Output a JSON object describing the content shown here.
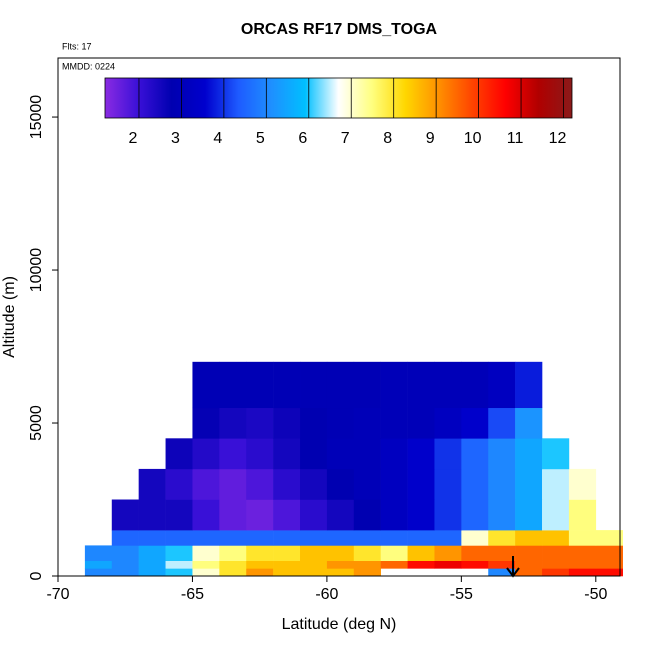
{
  "chart_data": {
    "type": "heatmap",
    "title": "ORCAS RF17 DMS_TOGA",
    "annotations": [
      "Flts: 17",
      "MMDD: 0224"
    ],
    "x_label": "Latitude (deg N)",
    "y_label": "Altitude (m)",
    "xlim": [
      -70,
      -49.1
    ],
    "ylim": [
      0,
      16930
    ],
    "xticks": [
      -70,
      -65,
      -60,
      -55,
      -50
    ],
    "yticks": [
      0,
      5000,
      10000,
      15000
    ],
    "x_edges": [
      -69,
      -68,
      -67,
      -66,
      -65,
      -64,
      -63,
      -62,
      -61,
      -60,
      -59,
      -58,
      -57,
      -56,
      -55,
      -54,
      -53,
      -52,
      -51,
      -50,
      -49
    ],
    "y_edges": [
      0,
      250,
      500,
      1000,
      1500,
      2500,
      3500,
      4500,
      5500,
      7000
    ],
    "z": [
      [
        5,
        5,
        5.5,
        6,
        7,
        8,
        9,
        8.5,
        8.5,
        8.5,
        9,
        null,
        null,
        null,
        null,
        5,
        9.5,
        10,
        10.5,
        10.5
      ],
      [
        5.5,
        5,
        5.5,
        6.5,
        7.5,
        8,
        8.5,
        8.5,
        8.5,
        9,
        9,
        9.5,
        10.5,
        10.8,
        10.5,
        10,
        9.5,
        9.5,
        9.5,
        9.5
      ],
      [
        5,
        5,
        5.5,
        6,
        7,
        7.5,
        8,
        8,
        8.5,
        8.5,
        8,
        7.5,
        8.5,
        9,
        9.5,
        9.5,
        9.5,
        9.5,
        9.5,
        9.5
      ],
      [
        null,
        4.5,
        4.5,
        4.5,
        4.5,
        4.5,
        4.5,
        4.5,
        4.5,
        4.5,
        4.5,
        4.5,
        4.5,
        4.5,
        7,
        8,
        8.5,
        8.5,
        7.5,
        7.5
      ],
      [
        null,
        2.5,
        2.5,
        2.5,
        2.0,
        1.6,
        1.5,
        1.8,
        2.2,
        2.5,
        2.8,
        3.2,
        3.5,
        4,
        4.5,
        5,
        5.5,
        6.5,
        7.5,
        null
      ],
      [
        null,
        null,
        2.5,
        2.2,
        1.8,
        1.6,
        1.8,
        2.2,
        2.5,
        2.8,
        3,
        3.2,
        3.5,
        4,
        4.5,
        5,
        5.5,
        6.5,
        7,
        null
      ],
      [
        null,
        null,
        null,
        2.6,
        2.3,
        2.0,
        2.2,
        2.5,
        2.8,
        3,
        3,
        3.2,
        3.5,
        4,
        4.5,
        5,
        5.5,
        6,
        null,
        null
      ],
      [
        null,
        null,
        null,
        null,
        2.7,
        2.5,
        2.4,
        2.6,
        2.8,
        2.9,
        3,
        3,
        3,
        3.2,
        3.5,
        4.2,
        5.2,
        null,
        null,
        null
      ],
      [
        null,
        null,
        null,
        null,
        2.9,
        2.9,
        2.9,
        2.9,
        2.9,
        2.9,
        2.9,
        3,
        3,
        3,
        3,
        3.2,
        3.8,
        null,
        null,
        null
      ]
    ],
    "clim": [
      1.2,
      12.2
    ],
    "cticks": [
      2,
      3,
      4,
      5,
      6,
      7,
      8,
      9,
      10,
      11,
      12
    ],
    "colors": [
      "#8a2be2",
      "#3a10d8",
      "#0000b0",
      "#0000cd",
      "#1e5bff",
      "#1e90ff",
      "#00bfff",
      "#ffffff",
      "#ffff80",
      "#ffd700",
      "#ff9000",
      "#ff4500",
      "#ff0000",
      "#b00000",
      "#8b1a1a"
    ]
  }
}
